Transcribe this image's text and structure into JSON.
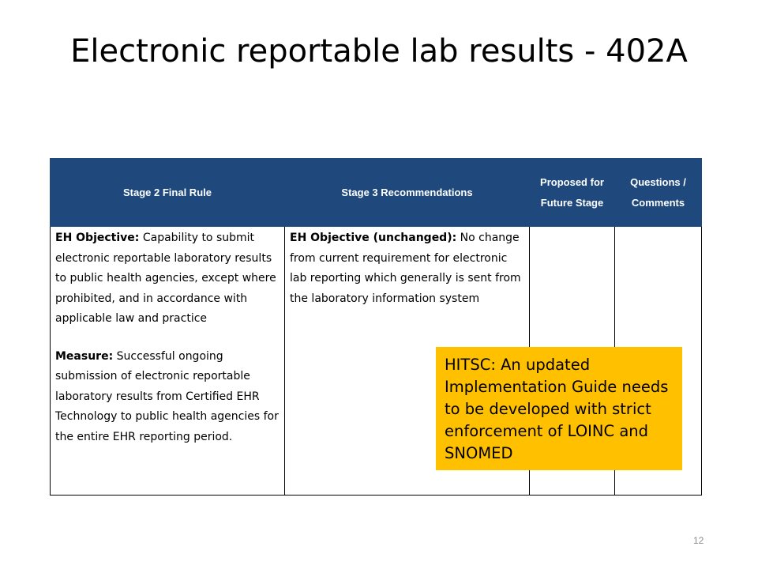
{
  "slide": {
    "title": "Electronic reportable lab results - 402A",
    "page_number": "12"
  },
  "table": {
    "headers": [
      "Stage 2 Final Rule",
      "Stage 3 Recommendations",
      "Proposed for Future Stage",
      "Questions / Comments"
    ],
    "stage2": {
      "objective_label": "EH Objective:",
      "objective_text": "Capability to submit electronic reportable laboratory results to public health agencies, except where prohibited, and in accordance with applicable law and practice",
      "measure_label": "Measure:",
      "measure_text": "Successful ongoing submission of electronic reportable laboratory results from Certified EHR Technology to public health agencies for the entire EHR reporting period."
    },
    "stage3": {
      "objective_label": "EH Objective (unchanged):",
      "objective_text": "No change from current requirement for electronic lab reporting which generally is sent from the laboratory information system"
    },
    "future": "",
    "comments": ""
  },
  "callout": {
    "text": "HITSC: An updated Implementation Guide needs to be developed with strict enforcement of LOINC and SNOMED",
    "color": "#ffc000"
  },
  "colors": {
    "header_bg": "#1f497d",
    "header_text": "#ffffff"
  }
}
